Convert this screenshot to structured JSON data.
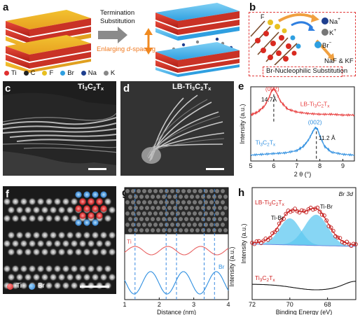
{
  "panel_a": {
    "label": "a",
    "arrow_text_line1": "Termination",
    "arrow_text_line2": "Substitution",
    "enlarge_text_1": "Enlarging ",
    "enlarge_text_2": "d",
    "enlarge_text_3": "-spacing",
    "legend": [
      {
        "symbol": "Ti",
        "color": "#e03030"
      },
      {
        "symbol": "C",
        "color": "#222222"
      },
      {
        "symbol": "F",
        "color": "#e8c020"
      },
      {
        "symbol": "Br",
        "color": "#2f9fe0"
      },
      {
        "symbol": "Na",
        "color": "#1f3f8f"
      },
      {
        "symbol": "K",
        "color": "#888888"
      }
    ]
  },
  "panel_b": {
    "label": "b",
    "f_label": "F",
    "na_label": "Na",
    "na_sup": "+",
    "k_label": "K",
    "k_sup": "+",
    "br_label": "Br",
    "br_sup": "−",
    "naf_label": "NaF & KF",
    "caption": "Br-Nucleophilic Substitution"
  },
  "panel_c": {
    "label": "c",
    "title_main": "Ti",
    "title_sub1": "3",
    "title_mid": "C",
    "title_sub2": "2",
    "title_end": "T",
    "title_sub3": "x"
  },
  "panel_d": {
    "label": "d",
    "title_pre": "LB-Ti",
    "title_sub1": "3",
    "title_mid": "C",
    "title_sub2": "2",
    "title_end": "T",
    "title_sub3": "x"
  },
  "panel_e": {
    "label": "e",
    "chart_data": {
      "type": "line",
      "xlabel": "2 θ (°)",
      "ylabel": "Intensity (a.u.)",
      "xlim": [
        5,
        9.5
      ],
      "xticks": [
        5,
        6,
        7,
        8,
        9
      ],
      "series": [
        {
          "name": "LB-Ti3C2Tx",
          "color": "#e84040",
          "x": [
            5.0,
            5.3,
            5.6,
            5.8,
            5.9,
            6.0,
            6.1,
            6.3,
            6.6,
            7.0,
            7.5,
            8.0,
            8.5,
            9.0,
            9.5
          ],
          "y": [
            0.62,
            0.66,
            0.74,
            0.86,
            0.94,
            0.98,
            0.93,
            0.8,
            0.7,
            0.66,
            0.64,
            0.63,
            0.63,
            0.62,
            0.62
          ]
        },
        {
          "name": "Ti3C2Tx",
          "color": "#2f8fe0",
          "x": [
            5.0,
            5.5,
            6.0,
            6.5,
            7.0,
            7.3,
            7.5,
            7.7,
            7.8,
            7.9,
            8.0,
            8.2,
            8.5,
            9.0,
            9.5
          ],
          "y": [
            0.08,
            0.09,
            0.1,
            0.11,
            0.14,
            0.2,
            0.28,
            0.4,
            0.45,
            0.43,
            0.34,
            0.2,
            0.12,
            0.09,
            0.08
          ]
        }
      ],
      "annotations": [
        {
          "text": "(002)",
          "color": "#e84040",
          "x": 6.0
        },
        {
          "text": "14.7Å",
          "color": "#111111",
          "x": 6.0
        },
        {
          "text": "(002)",
          "color": "#2f8fe0",
          "x": 7.85
        },
        {
          "text": "11.2 Å",
          "color": "#111111",
          "x": 7.85
        }
      ],
      "series_labels": {
        "lb_pre": "LB-Ti",
        "lb_s1": "3",
        "lb_mid": "C",
        "lb_s2": "2",
        "lb_end": "T",
        "lb_s3": "x",
        "ti_pre": "Ti",
        "ti_s1": "3",
        "ti_mid": "C",
        "ti_s2": "2",
        "ti_end": "T",
        "ti_s3": "x"
      }
    }
  },
  "panel_f": {
    "label": "f",
    "legend_ti": "Ti",
    "legend_br": "Br"
  },
  "panel_g": {
    "label": "g",
    "chart_data": {
      "type": "line",
      "xlabel": "Distance (nm)",
      "ylabel": "Intensity (a.u.)",
      "xlim": [
        1,
        4
      ],
      "xticks": [
        1,
        2,
        3,
        4
      ],
      "series": [
        {
          "name": "Ti",
          "color": "#e86060"
        },
        {
          "name": "Br",
          "color": "#2f8fe0"
        }
      ],
      "dashed_x": [
        1.3,
        2.2,
        2.5,
        3.3,
        3.6
      ]
    }
  },
  "panel_h": {
    "label": "h",
    "chart_data": {
      "type": "line",
      "title": "Br 3d",
      "xlabel": "Binding Energy (eV)",
      "ylabel": "Intensity (a.u.)",
      "xlim": [
        72,
        66.5
      ],
      "xticks": [
        72,
        70,
        68
      ],
      "peak_labels": [
        "Ti-Br",
        "Ti-Br"
      ],
      "series_labels": {
        "lb_pre": "LB-Ti",
        "lb_s1": "3",
        "lb_mid": "C",
        "lb_s2": "2",
        "lb_end": "T",
        "lb_s3": "x",
        "ti_pre": "Ti",
        "ti_s1": "3",
        "ti_mid": "C",
        "ti_s2": "2",
        "ti_end": "T",
        "ti_s3": "x"
      }
    }
  }
}
